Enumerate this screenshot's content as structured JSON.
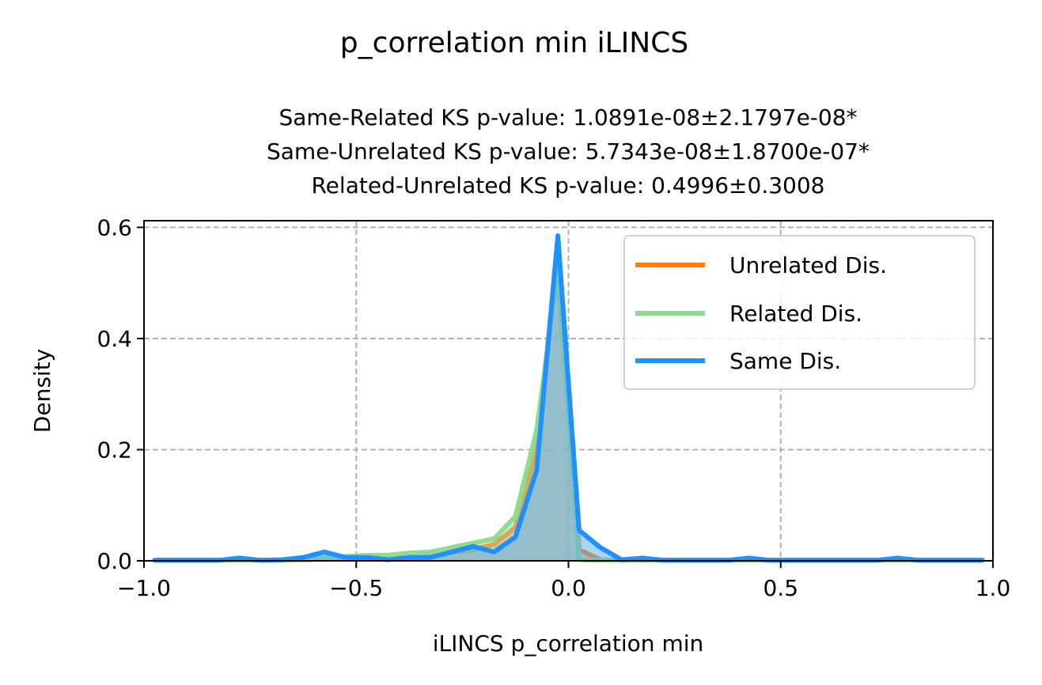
{
  "figure": {
    "suptitle": "p_correlation min iLINCS"
  },
  "chart_data": {
    "type": "area",
    "title_lines": [
      "Same-Related KS p-value: 1.0891e-08±2.1797e-08*",
      "Same-Unrelated KS p-value: 5.7343e-08±1.8700e-07*",
      "Related-Unrelated KS p-value: 0.4996±0.3008"
    ],
    "xlabel": "iLINCS p_correlation min",
    "ylabel": "Density",
    "xlim": [
      -1.0,
      1.0
    ],
    "ylim": [
      0.0,
      0.612
    ],
    "xticks": [
      -1.0,
      -0.5,
      0.0,
      0.5,
      1.0
    ],
    "xtick_labels": [
      "−1.0",
      "−0.5",
      "0.0",
      "0.5",
      "1.0"
    ],
    "yticks": [
      0.0,
      0.2,
      0.4,
      0.6
    ],
    "ytick_labels": [
      "0.0",
      "0.2",
      "0.4",
      "0.6"
    ],
    "grid": true,
    "legend_position": "top-right",
    "series": [
      {
        "name": "Unrelated Dis.",
        "color": "#ff7f0e",
        "fill": "#e8a45a",
        "x": [
          -0.975,
          -0.925,
          -0.875,
          -0.825,
          -0.775,
          -0.725,
          -0.675,
          -0.625,
          -0.575,
          -0.525,
          -0.475,
          -0.425,
          -0.375,
          -0.325,
          -0.275,
          -0.225,
          -0.175,
          -0.125,
          -0.075,
          -0.025,
          0.025,
          0.075,
          0.125,
          0.175,
          0.225,
          0.275,
          0.325,
          0.375,
          0.425,
          0.475,
          0.525,
          0.575,
          0.625,
          0.675,
          0.725,
          0.775,
          0.825,
          0.875,
          0.925,
          0.975
        ],
        "values": [
          0.001,
          0.001,
          0.001,
          0.001,
          0.001,
          0.001,
          0.001,
          0.002,
          0.003,
          0.004,
          0.005,
          0.006,
          0.008,
          0.01,
          0.015,
          0.02,
          0.03,
          0.06,
          0.2,
          0.56,
          0.02,
          0.002,
          0.001,
          0.001,
          0.001,
          0.001,
          0.001,
          0.001,
          0.001,
          0.001,
          0.001,
          0.001,
          0.001,
          0.001,
          0.001,
          0.001,
          0.001,
          0.001,
          0.001,
          0.001
        ]
      },
      {
        "name": "Related Dis.",
        "color": "#8fdb8f",
        "fill": "#a6d6a6",
        "x": [
          -0.975,
          -0.925,
          -0.875,
          -0.825,
          -0.775,
          -0.725,
          -0.675,
          -0.625,
          -0.575,
          -0.525,
          -0.475,
          -0.425,
          -0.375,
          -0.325,
          -0.275,
          -0.225,
          -0.175,
          -0.125,
          -0.075,
          -0.025,
          0.025,
          0.075,
          0.125,
          0.175,
          0.225,
          0.275,
          0.325,
          0.375,
          0.425,
          0.475,
          0.525,
          0.575,
          0.625,
          0.675,
          0.725,
          0.775,
          0.825,
          0.875,
          0.925,
          0.975
        ],
        "values": [
          0.001,
          0.001,
          0.001,
          0.001,
          0.001,
          0.001,
          0.001,
          0.002,
          0.006,
          0.008,
          0.01,
          0.01,
          0.014,
          0.016,
          0.024,
          0.032,
          0.04,
          0.08,
          0.235,
          0.52,
          0.002,
          0.001,
          0.001,
          0.001,
          0.001,
          0.001,
          0.001,
          0.001,
          0.001,
          0.001,
          0.001,
          0.001,
          0.001,
          0.001,
          0.001,
          0.001,
          0.001,
          0.001,
          0.001,
          0.001
        ]
      },
      {
        "name": "Same Dis.",
        "color": "#1e90ff",
        "fill": "#5aa9ee",
        "x": [
          -0.975,
          -0.925,
          -0.875,
          -0.825,
          -0.775,
          -0.725,
          -0.675,
          -0.625,
          -0.575,
          -0.525,
          -0.475,
          -0.425,
          -0.375,
          -0.325,
          -0.275,
          -0.225,
          -0.175,
          -0.125,
          -0.075,
          -0.025,
          0.025,
          0.075,
          0.125,
          0.175,
          0.225,
          0.275,
          0.325,
          0.375,
          0.425,
          0.475,
          0.525,
          0.575,
          0.625,
          0.675,
          0.725,
          0.775,
          0.825,
          0.875,
          0.925,
          0.975
        ],
        "values": [
          0.001,
          0.001,
          0.001,
          0.001,
          0.005,
          0.001,
          0.002,
          0.006,
          0.016,
          0.006,
          0.006,
          0.002,
          0.006,
          0.006,
          0.016,
          0.026,
          0.016,
          0.043,
          0.163,
          0.585,
          0.055,
          0.024,
          0.002,
          0.005,
          0.001,
          0.001,
          0.001,
          0.001,
          0.005,
          0.001,
          0.001,
          0.001,
          0.001,
          0.001,
          0.001,
          0.005,
          0.001,
          0.001,
          0.001,
          0.001
        ]
      }
    ]
  }
}
